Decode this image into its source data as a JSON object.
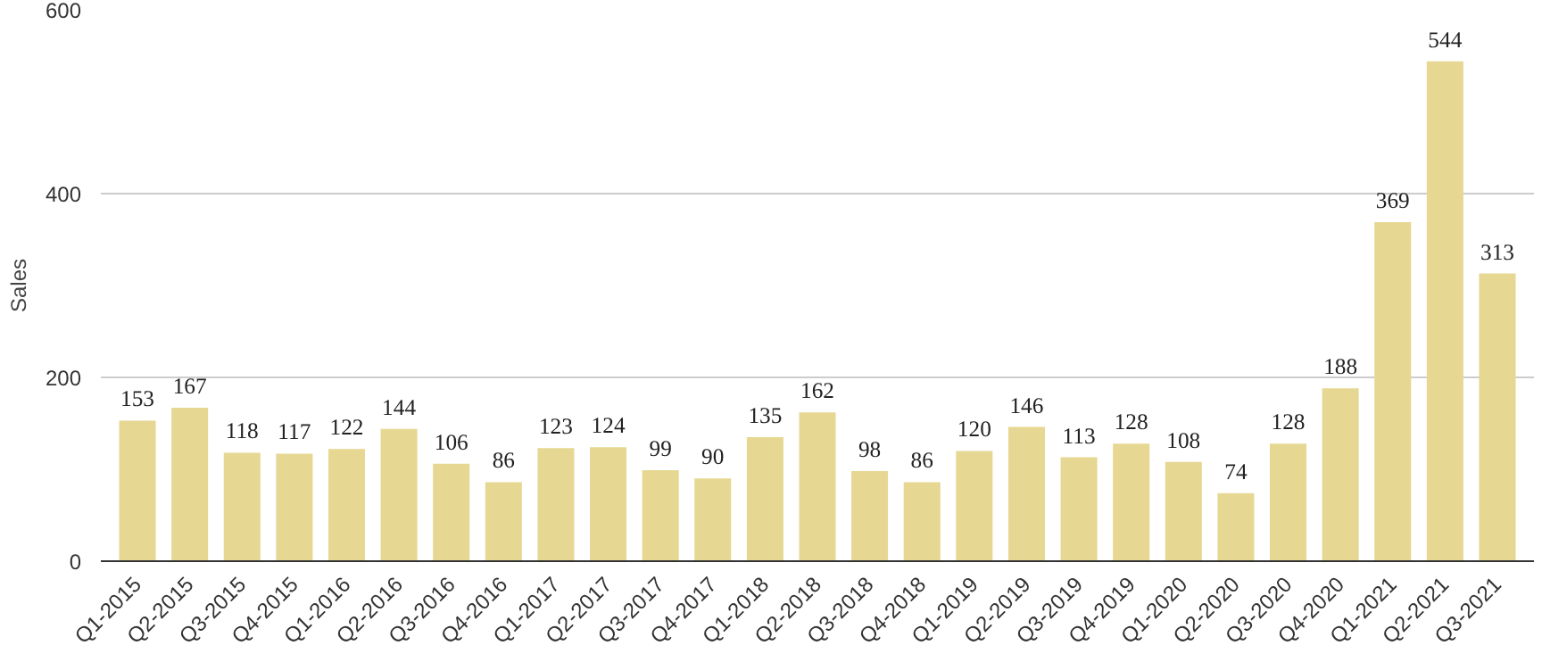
{
  "chart_data": {
    "type": "bar",
    "ylabel": "Sales",
    "categories": [
      "Q1-2015",
      "Q2-2015",
      "Q3-2015",
      "Q4-2015",
      "Q1-2016",
      "Q2-2016",
      "Q3-2016",
      "Q4-2016",
      "Q1-2017",
      "Q2-2017",
      "Q3-2017",
      "Q4-2017",
      "Q1-2018",
      "Q2-2018",
      "Q3-2018",
      "Q4-2018",
      "Q1-2019",
      "Q2-2019",
      "Q3-2019",
      "Q4-2019",
      "Q1-2020",
      "Q2-2020",
      "Q3-2020",
      "Q4-2020",
      "Q1-2021",
      "Q2-2021",
      "Q3-2021"
    ],
    "values": [
      153,
      167,
      118,
      117,
      122,
      144,
      106,
      86,
      123,
      124,
      99,
      90,
      135,
      162,
      98,
      86,
      120,
      146,
      113,
      128,
      108,
      74,
      128,
      188,
      369,
      544,
      313
    ],
    "color": "#e6d792",
    "ylim": [
      0,
      600
    ],
    "yticks": [
      0,
      200,
      400,
      600
    ],
    "grid": "y",
    "data_labels": true
  }
}
